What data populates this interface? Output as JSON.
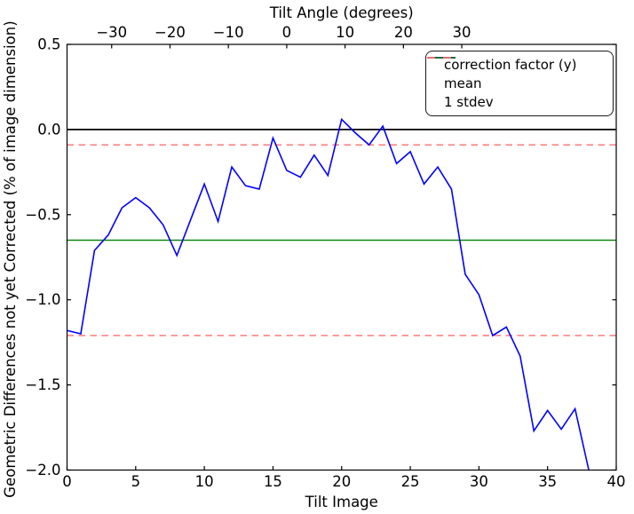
{
  "chart_data": {
    "type": "line",
    "xlabel": "Tilt Image",
    "ylabel": "Geometric Differences not yet Corrected (% of image dimension)",
    "top_axis": {
      "title": "Tilt Angle (degrees)",
      "tick_labels": [
        "−30",
        "−20",
        "−10",
        "0",
        "10",
        "20",
        "30"
      ],
      "tick_positions_in_tilt_image_units": [
        3.25,
        7.5,
        11.75,
        16.0,
        20.25,
        24.5,
        28.75
      ]
    },
    "xlim": [
      0,
      40
    ],
    "ylim": [
      -2.0,
      0.5
    ],
    "grid": false,
    "x_ticks": {
      "values": [
        0,
        5,
        10,
        15,
        20,
        25,
        30,
        35,
        40
      ],
      "labels": [
        "0",
        "5",
        "10",
        "15",
        "20",
        "25",
        "30",
        "35",
        "40"
      ]
    },
    "y_ticks": {
      "values": [
        0.5,
        0.0,
        -0.5,
        -1.0,
        -1.5,
        -2.0
      ],
      "labels": [
        "0.5",
        "0.0",
        "−0.5",
        "−1.0",
        "−1.5",
        "−2.0"
      ]
    },
    "series": [
      {
        "name": "correction factor (y)",
        "style": "solid",
        "x": [
          0,
          1,
          2,
          3,
          4,
          5,
          6,
          7,
          8,
          9,
          10,
          11,
          12,
          13,
          14,
          15,
          16,
          17,
          18,
          19,
          20,
          21,
          22,
          23,
          24,
          25,
          26,
          27,
          28,
          29,
          30,
          31,
          32,
          33,
          34,
          35,
          36,
          37,
          38
        ],
        "y": [
          -1.18,
          -1.2,
          -0.71,
          -0.62,
          -0.46,
          -0.4,
          -0.46,
          -0.56,
          -0.74,
          -0.53,
          -0.32,
          -0.54,
          -0.22,
          -0.33,
          -0.35,
          -0.05,
          -0.24,
          -0.28,
          -0.15,
          -0.27,
          0.06,
          -0.02,
          -0.09,
          0.02,
          -0.2,
          -0.13,
          -0.32,
          -0.22,
          -0.35,
          -0.85,
          -0.97,
          -1.21,
          -1.16,
          -1.33,
          -1.77,
          -1.65,
          -1.76,
          -1.64,
          -2.0
        ]
      },
      {
        "name": "mean",
        "style": "solid",
        "y_const": -0.65
      },
      {
        "name": "1 stdev",
        "style": "dashed",
        "y_const_upper": -0.09,
        "y_const_lower": -1.21
      }
    ],
    "reference_lines": {
      "zero_line": 0.0
    },
    "legend": {
      "position": "upper right",
      "entries": [
        "correction factor (y)",
        "mean",
        "1 stdev"
      ]
    },
    "colors": {
      "correction_factor": "#0000ff",
      "mean": "#008000",
      "stdev": "#ff6e6e",
      "zero_line": "#000000",
      "spine": "#000000",
      "background": "#ffffff"
    }
  }
}
